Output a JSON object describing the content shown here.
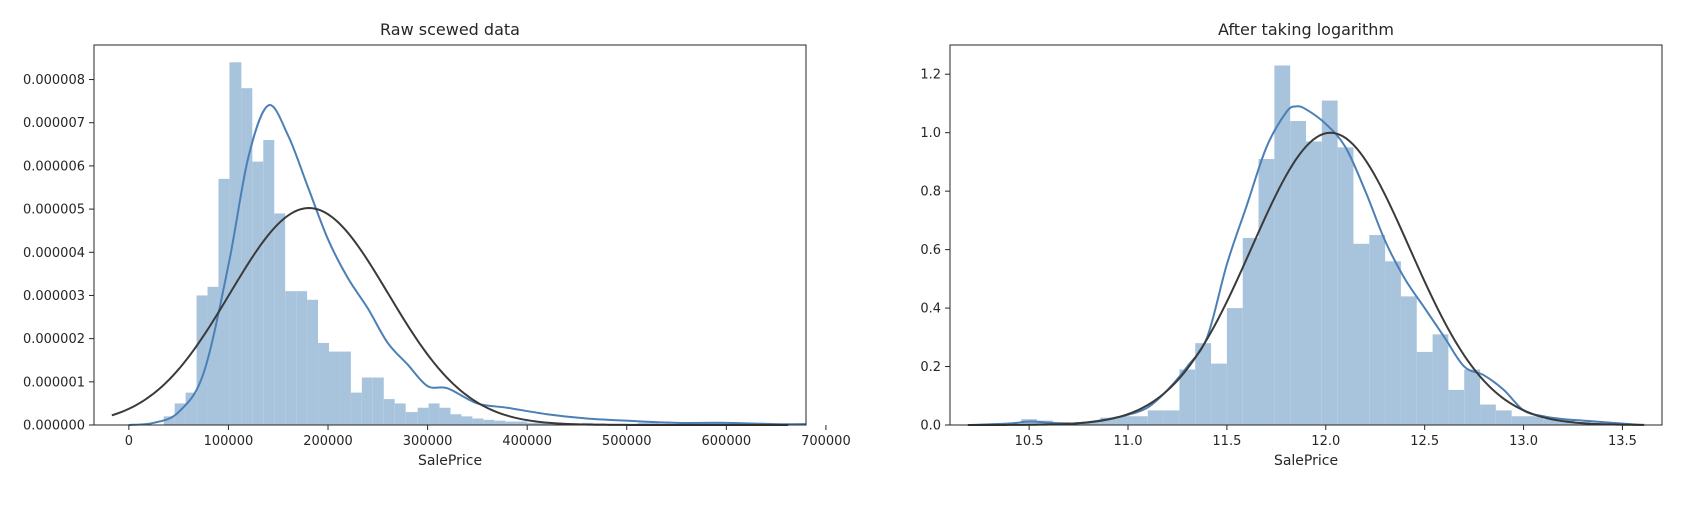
{
  "chart_data": [
    {
      "type": "histogram",
      "title": "Raw scewed data",
      "xlabel": "SalePrice",
      "ylabel": "",
      "xlim": [
        -35000,
        680000
      ],
      "ylim": [
        0,
        8.8e-06
      ],
      "xticks": [
        0,
        100000,
        200000,
        300000,
        400000,
        500000,
        600000,
        700000
      ],
      "xtick_labels": [
        "0",
        "100000",
        "200000",
        "300000",
        "400000",
        "500000",
        "600000",
        "700000"
      ],
      "yticks": [
        0,
        1e-06,
        2e-06,
        3e-06,
        4e-06,
        5e-06,
        6e-06,
        7e-06,
        8e-06
      ],
      "ytick_labels": [
        "0.000000",
        "0.000001",
        "0.000002",
        "0.000003",
        "0.000004",
        "0.000005",
        "0.000006",
        "0.000007",
        "0.000008"
      ],
      "grid": false,
      "bin_edges": [
        35000,
        46000,
        57000,
        68000,
        79000,
        90000,
        101000,
        113000,
        124000,
        135000,
        146000,
        157000,
        168000,
        179000,
        190000,
        201000,
        212000,
        223000,
        234000,
        245000,
        256000,
        267000,
        278000,
        290000,
        301000,
        312000,
        323000,
        334000,
        345000,
        356000,
        367000,
        378000,
        389000,
        400000,
        411000,
        422000,
        433000,
        444000,
        455000,
        466000,
        478000,
        489000,
        500000,
        511000,
        522000,
        533000,
        544000,
        555000,
        566000,
        577000,
        588000,
        599000,
        610000,
        621000,
        632000
      ],
      "bin_density": [
        2e-07,
        5e-07,
        7.5e-07,
        3e-06,
        3.2e-06,
        5.7e-06,
        8.4e-06,
        7.8e-06,
        6.1e-06,
        6.6e-06,
        4.9e-06,
        3.1e-06,
        3.1e-06,
        2.9e-06,
        1.9e-06,
        1.7e-06,
        1.7e-06,
        7.5e-07,
        1.1e-06,
        1.1e-06,
        6e-07,
        5e-07,
        3e-07,
        4e-07,
        5e-07,
        4e-07,
        2.5e-07,
        2e-07,
        1.5e-07,
        1.2e-07,
        1e-07,
        8e-08,
        8e-08,
        5e-08,
        5e-08,
        5e-08,
        4e-08,
        4e-08,
        5e-08,
        4e-08,
        3e-08,
        3e-08,
        3e-08,
        5e-08,
        5e-08,
        3e-08,
        2e-08,
        2e-08,
        3e-08,
        5e-08,
        4e-08,
        2e-08,
        2e-08,
        1e-08
      ],
      "kde": {
        "name": "",
        "x": [
          0,
          25000,
          50000,
          75000,
          100000,
          120000,
          140000,
          160000,
          180000,
          200000,
          220000,
          240000,
          260000,
          280000,
          300000,
          320000,
          350000,
          380000,
          420000,
          460000,
          500000,
          550000,
          600000,
          650000,
          680000
        ],
        "y": [
          0.0,
          5e-08,
          3e-07,
          1.2e-06,
          3.7e-06,
          6.2e-06,
          7.4e-06,
          6.7e-06,
          5.5e-06,
          4.3e-06,
          3.4e-06,
          2.7e-06,
          1.9e-06,
          1.4e-06,
          9e-07,
          8.5e-07,
          5e-07,
          4e-07,
          2.5e-07,
          1.5e-07,
          1e-07,
          5e-08,
          5e-08,
          2e-08,
          2e-08
        ]
      },
      "normal_fit": {
        "mean": 180900,
        "std": 79400
      }
    },
    {
      "type": "histogram",
      "title": "After taking logarithm",
      "xlabel": "SalePrice",
      "ylabel": "",
      "xlim": [
        10.1,
        13.7
      ],
      "ylim": [
        0,
        1.3
      ],
      "xticks": [
        10.5,
        11.0,
        11.5,
        12.0,
        12.5,
        13.0,
        13.5
      ],
      "xtick_labels": [
        "10.5",
        "11.0",
        "11.5",
        "12.0",
        "12.5",
        "13.0",
        "13.5"
      ],
      "yticks": [
        0,
        0.2,
        0.4,
        0.6,
        0.8,
        1.0,
        1.2
      ],
      "ytick_labels": [
        "0.0",
        "0.2",
        "0.4",
        "0.6",
        "0.8",
        "1.0",
        "1.2"
      ],
      "grid": false,
      "bin_edges": [
        10.46,
        10.54,
        10.62,
        10.7,
        10.78,
        10.86,
        10.94,
        11.02,
        11.1,
        11.18,
        11.26,
        11.34,
        11.42,
        11.5,
        11.58,
        11.66,
        11.74,
        11.82,
        11.9,
        11.98,
        12.06,
        12.14,
        12.22,
        12.3,
        12.38,
        12.46,
        12.54,
        12.62,
        12.7,
        12.78,
        12.86,
        12.94,
        13.02,
        13.1,
        13.18,
        13.26,
        13.34
      ],
      "bin_density": [
        0.02,
        0.015,
        0.01,
        0.005,
        0.01,
        0.025,
        0.03,
        0.03,
        0.05,
        0.05,
        0.19,
        0.28,
        0.21,
        0.4,
        0.64,
        0.91,
        1.23,
        1.04,
        0.97,
        1.11,
        0.95,
        0.62,
        0.65,
        0.56,
        0.44,
        0.25,
        0.31,
        0.12,
        0.19,
        0.07,
        0.05,
        0.03,
        0.03,
        0.02,
        0.02,
        0.01
      ],
      "kde": {
        "name": "",
        "x": [
          10.2,
          10.4,
          10.5,
          10.6,
          10.7,
          10.8,
          10.9,
          11.0,
          11.1,
          11.2,
          11.3,
          11.4,
          11.5,
          11.6,
          11.7,
          11.8,
          11.85,
          11.9,
          12.0,
          12.1,
          12.2,
          12.3,
          12.4,
          12.5,
          12.6,
          12.7,
          12.8,
          12.9,
          13.0,
          13.1,
          13.2,
          13.3,
          13.4,
          13.6
        ],
        "y": [
          0.0,
          0.005,
          0.012,
          0.008,
          0.005,
          0.01,
          0.02,
          0.035,
          0.06,
          0.12,
          0.2,
          0.3,
          0.55,
          0.75,
          0.95,
          1.07,
          1.09,
          1.08,
          1.03,
          0.95,
          0.8,
          0.63,
          0.5,
          0.4,
          0.3,
          0.2,
          0.17,
          0.12,
          0.05,
          0.03,
          0.02,
          0.015,
          0.01,
          0.0
        ]
      },
      "normal_fit": {
        "mean": 12.024,
        "std": 0.399
      }
    }
  ],
  "style": {
    "bar_color": "#a8c4dd",
    "kde_color": "#4c7fb5",
    "fit_color": "#3a3a3a",
    "axis_color": "#262626"
  }
}
